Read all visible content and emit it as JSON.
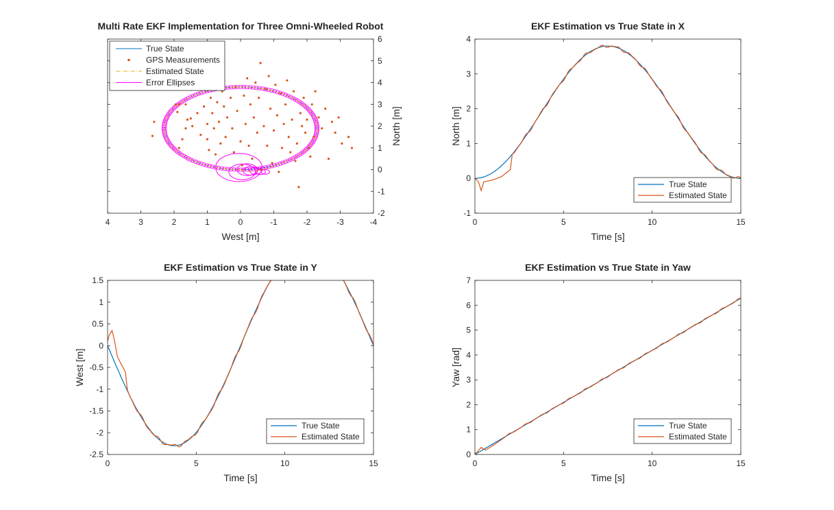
{
  "figure": {
    "colors": {
      "true": "#0072BD",
      "est": "#D95319",
      "gps": "#D95319",
      "est_dash": "#EDB120",
      "ellipse": "#FF00FF",
      "axes": "#262626"
    }
  },
  "chart_data": [
    {
      "id": "xy",
      "type": "line",
      "title": "Multi Rate EKF Implementation for Three Omni-Wheeled Robot",
      "xlabel": "West [m]",
      "ylabel": "North [m]",
      "xlim": [
        -4,
        4
      ],
      "x_reversed": true,
      "ylim": [
        -2,
        6
      ],
      "y_axis_location": "right",
      "xticks": [
        4,
        3,
        2,
        1,
        0,
        -1,
        -2,
        -3,
        -4
      ],
      "yticks": [
        -2,
        -1,
        0,
        1,
        2,
        3,
        4,
        5,
        6
      ],
      "legend": {
        "position": "top-left",
        "entries": [
          "True State",
          "GPS Measurements",
          "Estimated State",
          "Error Ellipses"
        ]
      },
      "trajectory_model": "N = 1.9 - 1.9*cos(2*pi*t/15), W = -2.3*sin(2*pi*t/15), t in [0, 15] s",
      "gps_points": [
        [
          2.6,
          2.2
        ],
        [
          2.65,
          1.55
        ],
        [
          1.95,
          3.0
        ],
        [
          1.85,
          3.0
        ],
        [
          1.65,
          3.0
        ],
        [
          1.9,
          2.65
        ],
        [
          1.6,
          2.3
        ],
        [
          1.65,
          1.9
        ],
        [
          1.75,
          1.4
        ],
        [
          1.85,
          1.0
        ],
        [
          1.5,
          2.35
        ],
        [
          1.45,
          2.0
        ],
        [
          1.3,
          2.6
        ],
        [
          1.2,
          1.6
        ],
        [
          1.1,
          2.9
        ],
        [
          1.0,
          2.1
        ],
        [
          1.0,
          1.4
        ],
        [
          0.95,
          0.9
        ],
        [
          0.9,
          3.3
        ],
        [
          0.85,
          2.6
        ],
        [
          0.8,
          1.9
        ],
        [
          0.75,
          0.7
        ],
        [
          0.7,
          3.1
        ],
        [
          0.65,
          2.2
        ],
        [
          0.6,
          1.2
        ],
        [
          0.55,
          3.6
        ],
        [
          0.5,
          2.9
        ],
        [
          0.45,
          1.5
        ],
        [
          0.4,
          2.4
        ],
        [
          0.3,
          3.3
        ],
        [
          0.25,
          1.9
        ],
        [
          0.2,
          0.8
        ],
        [
          0.15,
          3.8
        ],
        [
          0.1,
          2.7
        ],
        [
          0.0,
          1.3
        ],
        [
          -0.05,
          0.2
        ],
        [
          -0.1,
          3.4
        ],
        [
          -0.15,
          2.1
        ],
        [
          -0.2,
          4.2
        ],
        [
          -0.25,
          1.1
        ],
        [
          -0.3,
          3.0
        ],
        [
          -0.35,
          0.5
        ],
        [
          -0.4,
          2.4
        ],
        [
          -0.45,
          4.0
        ],
        [
          -0.5,
          1.7
        ],
        [
          -0.55,
          3.3
        ],
        [
          -0.6,
          4.9
        ],
        [
          -0.6,
          0.0
        ],
        [
          -0.7,
          2.0
        ],
        [
          -0.75,
          3.7
        ],
        [
          -0.8,
          1.1
        ],
        [
          -0.85,
          4.3
        ],
        [
          -0.9,
          2.8
        ],
        [
          -0.95,
          0.3
        ],
        [
          -1.0,
          1.8
        ],
        [
          -1.05,
          3.9
        ],
        [
          -1.1,
          2.5
        ],
        [
          -1.15,
          -0.1
        ],
        [
          -1.2,
          3.5
        ],
        [
          -1.25,
          1.0
        ],
        [
          -1.3,
          2.1
        ],
        [
          -1.35,
          3.0
        ],
        [
          -1.4,
          4.1
        ],
        [
          -1.45,
          1.5
        ],
        [
          -1.5,
          0.8
        ],
        [
          -1.55,
          2.3
        ],
        [
          -1.6,
          3.6
        ],
        [
          -1.65,
          0.4
        ],
        [
          -1.7,
          1.2
        ],
        [
          -1.75,
          -0.8
        ],
        [
          -1.8,
          2.6
        ],
        [
          -1.85,
          2.0
        ],
        [
          -1.9,
          3.3
        ],
        [
          -1.95,
          1.7
        ],
        [
          -2.0,
          2.3
        ],
        [
          -2.05,
          1.0
        ],
        [
          -2.1,
          0.6
        ],
        [
          -2.15,
          3.0
        ],
        [
          -2.2,
          1.5
        ],
        [
          -2.25,
          3.6
        ],
        [
          -2.35,
          2.4
        ],
        [
          -2.45,
          1.9
        ],
        [
          -2.55,
          2.8
        ],
        [
          -2.65,
          0.5
        ],
        [
          -2.75,
          2.2
        ],
        [
          -2.85,
          1.7
        ],
        [
          -2.95,
          2.4
        ],
        [
          -3.05,
          1.2
        ],
        [
          -3.25,
          1.5
        ],
        [
          -3.35,
          1.0
        ]
      ],
      "ellipses": [
        {
          "center": [
            0.05,
            0.1
          ],
          "radii": [
            0.7,
            0.65
          ]
        },
        {
          "center": [
            -0.05,
            -0.1
          ],
          "radii": [
            0.4,
            0.36
          ]
        },
        {
          "center": [
            -0.2,
            0.0
          ],
          "radii": [
            0.3,
            0.27
          ]
        },
        {
          "center": [
            -0.3,
            -0.05
          ],
          "radii": [
            0.22,
            0.2
          ]
        },
        {
          "center": [
            -0.45,
            -0.05
          ],
          "radii": [
            0.18,
            0.16
          ]
        },
        {
          "center": [
            -0.6,
            -0.1
          ],
          "radii": [
            0.15,
            0.13
          ]
        },
        {
          "center": [
            -0.75,
            -0.1
          ],
          "radii": [
            0.12,
            0.11
          ]
        }
      ]
    },
    {
      "id": "x",
      "type": "line",
      "title": "EKF Estimation vs True State in X",
      "xlabel": "Time [s]",
      "ylabel": "North [m]",
      "xlim": [
        0,
        15
      ],
      "ylim": [
        -1,
        4
      ],
      "xticks": [
        0,
        5,
        10,
        15
      ],
      "yticks": [
        -1,
        0,
        1,
        2,
        3,
        4
      ],
      "legend": {
        "position": "bottom-right",
        "entries": [
          "True State",
          "Estimated State"
        ]
      },
      "series": [
        {
          "name": "True State",
          "model": "N = 1.9 - 1.9*cos(2*pi*t/15)",
          "x": [
            0,
            1,
            2,
            3,
            4,
            5,
            6,
            7,
            7.5,
            8,
            9,
            10,
            11,
            12,
            13,
            14,
            15
          ],
          "y": [
            0,
            0.03,
            0.3,
            0.65,
            1.2,
            1.73,
            2.42,
            3.1,
            3.45,
            3.7,
            3.78,
            3.3,
            2.75,
            2.1,
            1.45,
            0.8,
            0.28
          ]
        },
        {
          "name": "Estimated State",
          "x": [
            0,
            0.2,
            0.35,
            0.5,
            1,
            1.5,
            2
          ],
          "y": [
            0,
            -0.1,
            -0.35,
            -0.1,
            -0.05,
            0.05,
            0.25
          ]
        }
      ]
    },
    {
      "id": "y",
      "type": "line",
      "title": "EKF Estimation vs True State in Y",
      "xlabel": "Time [s]",
      "ylabel": "West [m]",
      "xlim": [
        0,
        15
      ],
      "ylim": [
        -2.5,
        1.5
      ],
      "xticks": [
        0,
        5,
        10,
        15
      ],
      "yticks": [
        -2.5,
        -2,
        -1.5,
        -1,
        -0.5,
        0,
        0.5,
        1,
        1.5
      ],
      "legend": {
        "position": "bottom-right",
        "entries": [
          "True State",
          "Estimated State"
        ]
      },
      "series": [
        {
          "name": "True State",
          "model": "W = -2.3*sin(2*pi*t/15)",
          "x": [
            0,
            1,
            2,
            3,
            4,
            4.6,
            5,
            6,
            7,
            8,
            9,
            10,
            11,
            12,
            13,
            14,
            15
          ],
          "y": [
            0,
            -0.6,
            -1.3,
            -1.85,
            -2.25,
            -2.33,
            -2.25,
            -1.85,
            -1.3,
            -0.6,
            0.1,
            0.75,
            1.2,
            1.45,
            1.3,
            0.8,
            0.1
          ]
        },
        {
          "name": "Estimated State",
          "x": [
            0,
            0.1,
            0.25,
            0.4,
            0.55,
            0.8,
            1.0
          ],
          "y": [
            0.1,
            0.25,
            0.35,
            0.1,
            -0.25,
            -0.45,
            -0.6
          ]
        }
      ]
    },
    {
      "id": "yaw",
      "type": "line",
      "title": "EKF Estimation vs True State in Yaw",
      "xlabel": "Time [s]",
      "ylabel": "Yaw [rad]",
      "xlim": [
        0,
        15
      ],
      "ylim": [
        0,
        7
      ],
      "xticks": [
        0,
        5,
        10,
        15
      ],
      "yticks": [
        0,
        1,
        2,
        3,
        4,
        5,
        6,
        7
      ],
      "legend": {
        "position": "bottom-right",
        "entries": [
          "True State",
          "Estimated State"
        ]
      },
      "series": [
        {
          "name": "True State",
          "model": "Yaw = 2*pi*t/15",
          "x": [
            0,
            15
          ],
          "y": [
            0,
            6.283
          ]
        },
        {
          "name": "Estimated State",
          "x": [
            0,
            0.15,
            0.35,
            0.6,
            1.0,
            1.5
          ],
          "y": [
            0,
            0.12,
            0.28,
            0.18,
            0.35,
            0.6
          ]
        }
      ]
    }
  ]
}
